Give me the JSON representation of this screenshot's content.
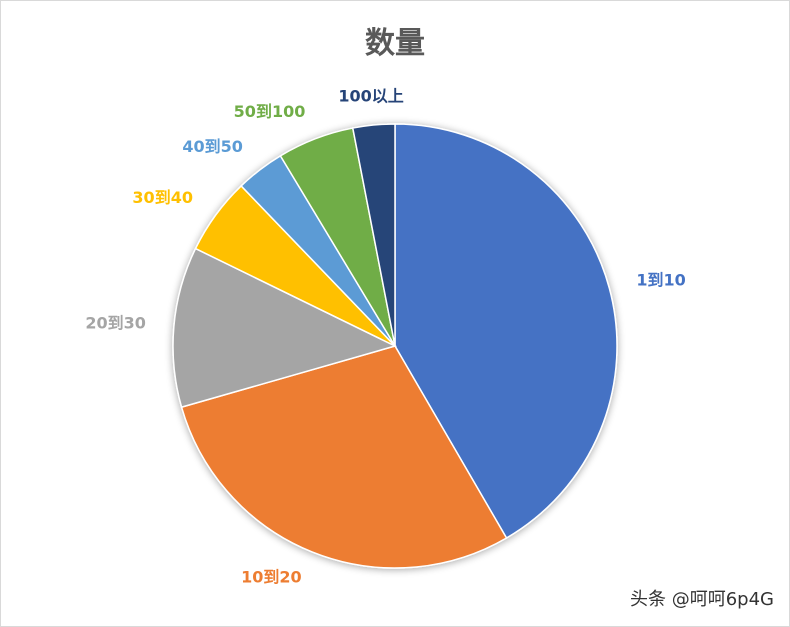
{
  "chart_data": {
    "type": "pie",
    "title": "数量",
    "categories": [
      "1到10",
      "10到20",
      "20到30",
      "30到40",
      "40到50",
      "50到100",
      "100以上"
    ],
    "values": [
      41,
      28.5,
      11.5,
      5.5,
      3.5,
      5.5,
      3
    ],
    "colors": [
      "#4472C4",
      "#ED7D31",
      "#A5A5A5",
      "#FFC000",
      "#5B9BD5",
      "#70AD47",
      "#264478"
    ],
    "start_angle": "12 o'clock",
    "direction": "clockwise",
    "legend": "none",
    "data_labels": "category names outside slices"
  },
  "watermark": "头条 @呵呵6p4G"
}
